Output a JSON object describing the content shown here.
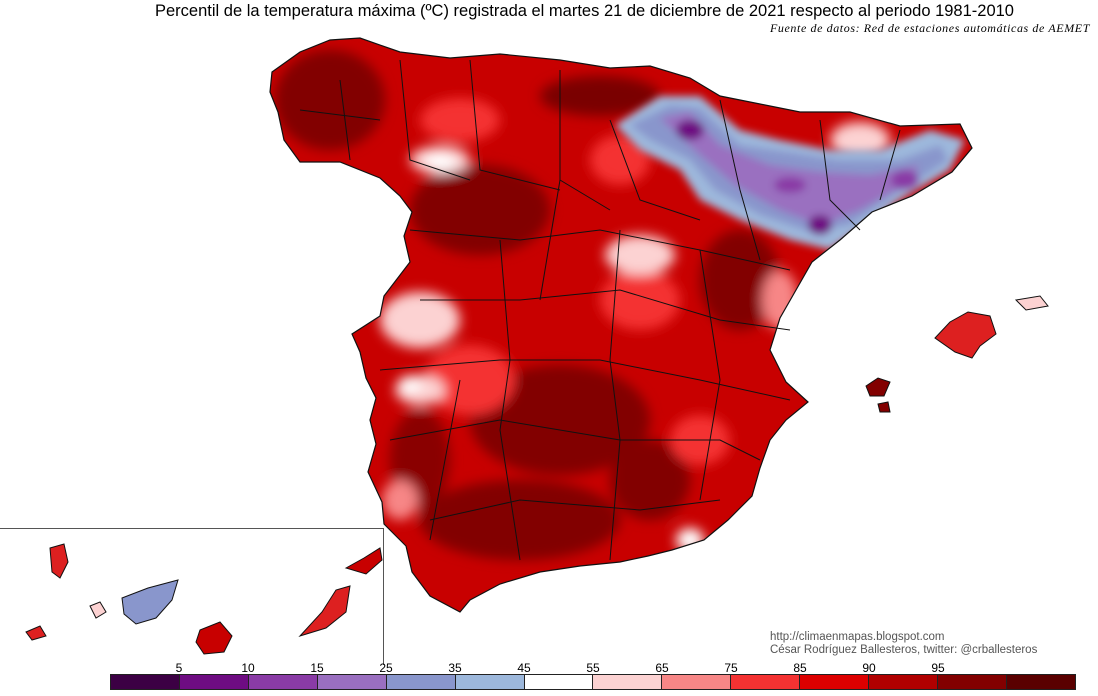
{
  "header": {
    "title": "Percentil de la temperatura máxima (ºC) registrada el martes 21 de diciembre de 2021 respecto al periodo 1981-2010",
    "source": "Fuente de datos: Red de estaciones automáticas de AEMET"
  },
  "credits": {
    "url": "http://climaenmapas.blogspot.com",
    "author": "César Rodríguez Ballesteros, twitter: @crballesteros"
  },
  "legend": {
    "colors": [
      "#3c0044",
      "#6e0c82",
      "#8a3ba6",
      "#9a6fc0",
      "#8996cc",
      "#9db8dc",
      "#ffffff",
      "#fcd2d2",
      "#f78686",
      "#f43232",
      "#dd0000",
      "#b00000",
      "#820000",
      "#5a0000"
    ],
    "labels": [
      "5",
      "10",
      "15",
      "25",
      "35",
      "45",
      "55",
      "65",
      "75",
      "85",
      "90",
      "95"
    ]
  },
  "map": {
    "land_color": "#c80000",
    "border_color": "#111111",
    "regions": [
      "Península",
      "Baleares",
      "Canarias"
    ]
  }
}
